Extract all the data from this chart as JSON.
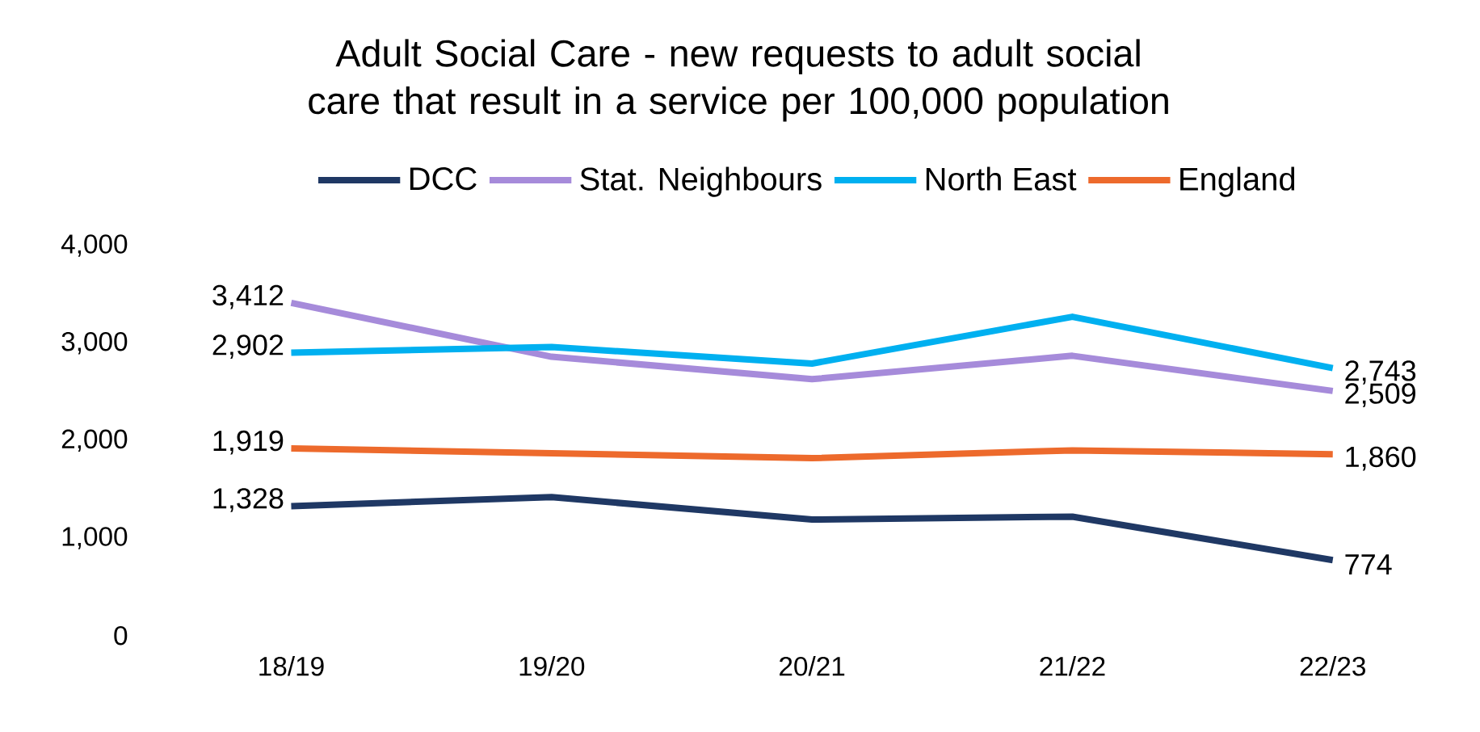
{
  "chart_data": {
    "type": "line",
    "title": "Adult Social Care - new requests to adult social care that result in a service per 100,000 population",
    "categories": [
      "18/19",
      "19/20",
      "20/21",
      "21/22",
      "22/23"
    ],
    "series": [
      {
        "name": "DCC",
        "color": "#1f3864",
        "values": [
          1328,
          1420,
          1190,
          1220,
          774
        ],
        "value_labels": [
          "1,328",
          null,
          null,
          null,
          "774"
        ]
      },
      {
        "name": "Stat. Neighbours",
        "color": "#a68bda",
        "values": [
          3412,
          2860,
          2630,
          2870,
          2509
        ],
        "value_labels": [
          "3,412",
          null,
          null,
          null,
          "2,509"
        ]
      },
      {
        "name": "North East",
        "color": "#00b0f0",
        "values": [
          2902,
          2960,
          2790,
          3270,
          2743
        ],
        "value_labels": [
          "2,902",
          null,
          null,
          null,
          "2,743"
        ]
      },
      {
        "name": "England",
        "color": "#ed6a2c",
        "values": [
          1919,
          1870,
          1820,
          1900,
          1860
        ],
        "value_labels": [
          "1,919",
          null,
          null,
          null,
          "1,860"
        ]
      }
    ],
    "ylim": [
      0,
      4000
    ],
    "yticks": [
      0,
      {
        "value": 1000,
        "label": "1,000"
      },
      {
        "value": 2000,
        "label": "2,000"
      },
      {
        "value": 3000,
        "label": "3,000"
      },
      {
        "value": 4000,
        "label": "4,000"
      }
    ],
    "grid": false,
    "legend": "top",
    "marker": "none",
    "line_style": "solid"
  }
}
